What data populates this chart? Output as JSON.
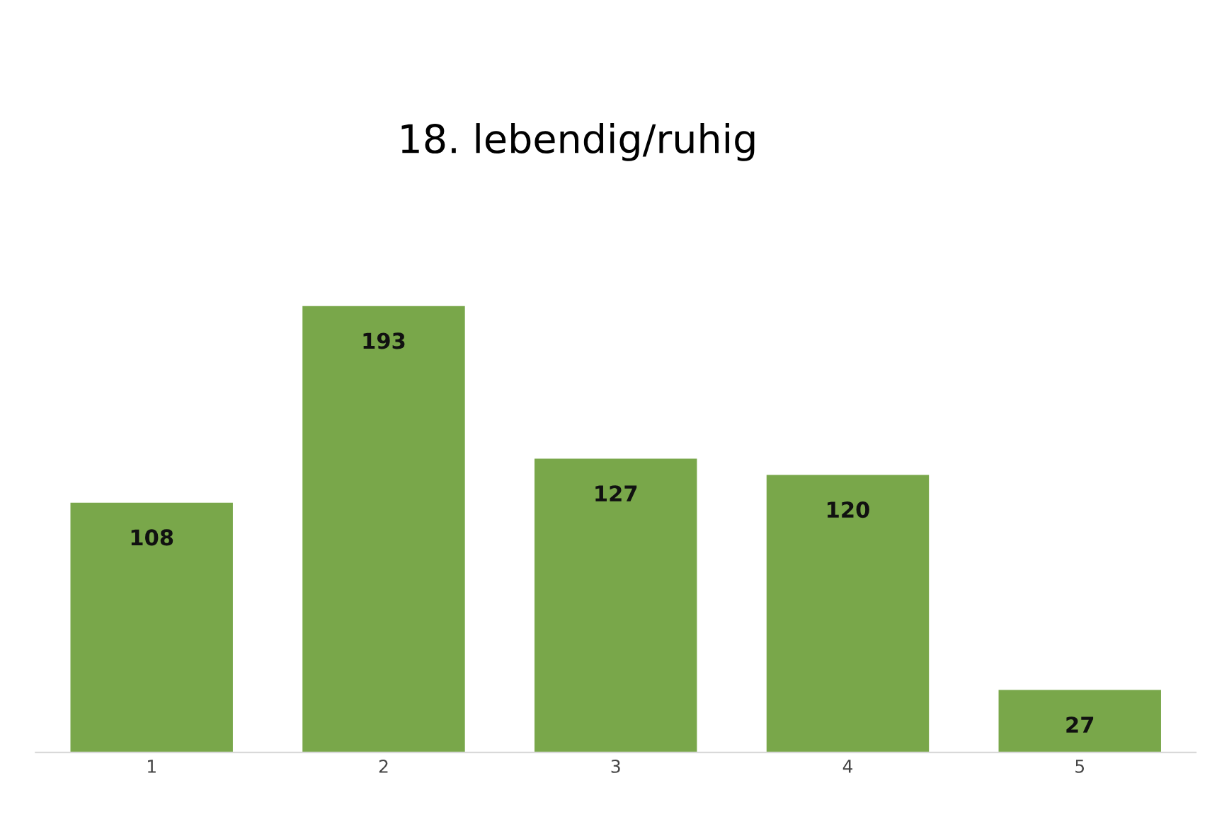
{
  "chart_data": {
    "type": "bar",
    "title": "18. lebendig/ruhig",
    "categories": [
      "1",
      "2",
      "3",
      "4",
      "5"
    ],
    "values": [
      108,
      193,
      127,
      120,
      27
    ],
    "color": "#79a74a",
    "data_labels": true,
    "grid": false,
    "legend": false,
    "tick_labels": "x"
  }
}
